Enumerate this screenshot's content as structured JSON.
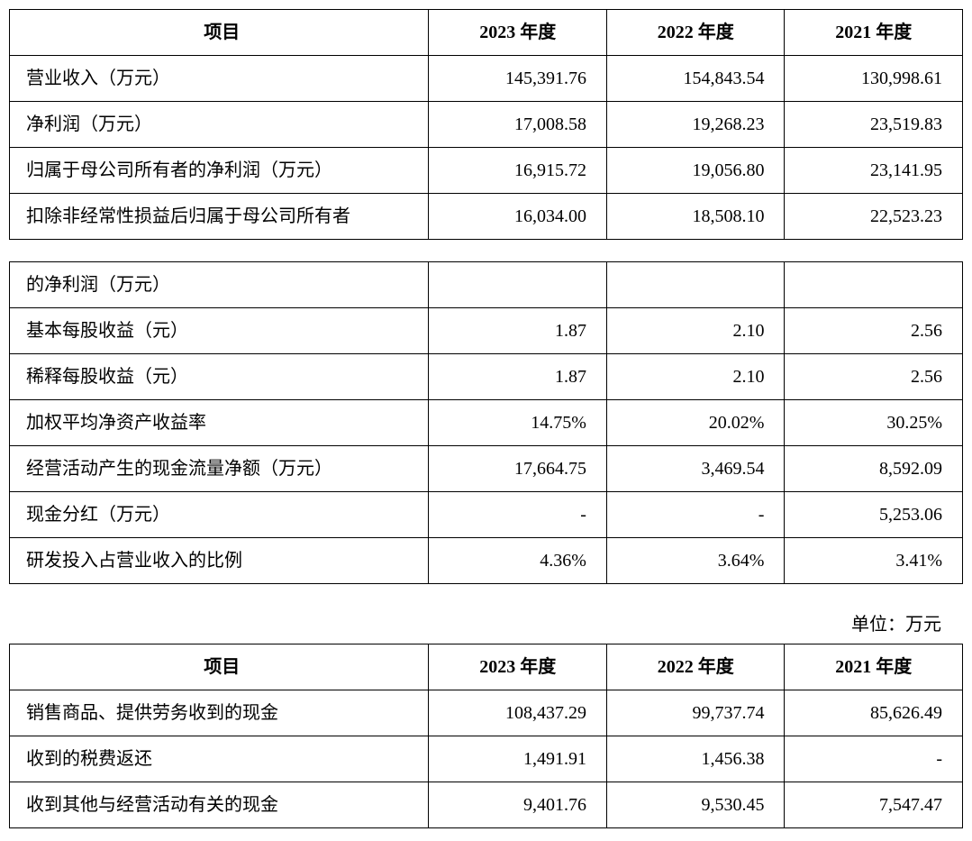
{
  "columns": {
    "label": "项目",
    "y2023": "2023 年度",
    "y2022": "2022 年度",
    "y2021": "2021 年度"
  },
  "table1": {
    "rows": [
      {
        "label": "营业收入（万元）",
        "y2023": "145,391.76",
        "y2022": "154,843.54",
        "y2021": "130,998.61"
      },
      {
        "label": "净利润（万元）",
        "y2023": "17,008.58",
        "y2022": "19,268.23",
        "y2021": "23,519.83"
      },
      {
        "label": "归属于母公司所有者的净利润（万元）",
        "y2023": "16,915.72",
        "y2022": "19,056.80",
        "y2021": "23,141.95"
      },
      {
        "label": "扣除非经常性损益后归属于母公司所有者",
        "y2023": "16,034.00",
        "y2022": "18,508.10",
        "y2021": "22,523.23"
      }
    ]
  },
  "table2": {
    "rows": [
      {
        "label": "的净利润（万元）",
        "y2023": "",
        "y2022": "",
        "y2021": ""
      },
      {
        "label": "基本每股收益（元）",
        "y2023": "1.87",
        "y2022": "2.10",
        "y2021": "2.56"
      },
      {
        "label": "稀释每股收益（元）",
        "y2023": "1.87",
        "y2022": "2.10",
        "y2021": "2.56"
      },
      {
        "label": "加权平均净资产收益率",
        "y2023": "14.75%",
        "y2022": "20.02%",
        "y2021": "30.25%"
      },
      {
        "label": "经营活动产生的现金流量净额（万元）",
        "y2023": "17,664.75",
        "y2022": "3,469.54",
        "y2021": "8,592.09"
      },
      {
        "label": "现金分红（万元）",
        "y2023": "-",
        "y2022": "-",
        "y2021": "5,253.06"
      },
      {
        "label": "研发投入占营业收入的比例",
        "y2023": "4.36%",
        "y2022": "3.64%",
        "y2021": "3.41%"
      }
    ]
  },
  "unit_line": "单位：万元",
  "table3": {
    "rows": [
      {
        "label": "销售商品、提供劳务收到的现金",
        "y2023": "108,437.29",
        "y2022": "99,737.74",
        "y2021": "85,626.49"
      },
      {
        "label": "收到的税费返还",
        "y2023": "1,491.91",
        "y2022": "1,456.38",
        "y2021": "-"
      },
      {
        "label": "收到其他与经营活动有关的现金",
        "y2023": "9,401.76",
        "y2022": "9,530.45",
        "y2021": "7,547.47"
      }
    ]
  },
  "style": {
    "font_size_pt": 20,
    "border_color": "#000000",
    "background_color": "#ffffff",
    "text_color": "#000000",
    "col_widths_percent": [
      44,
      18.67,
      18.67,
      18.67
    ],
    "header_font_weight": "bold",
    "cell_align_label": "left",
    "cell_align_value": "right"
  }
}
